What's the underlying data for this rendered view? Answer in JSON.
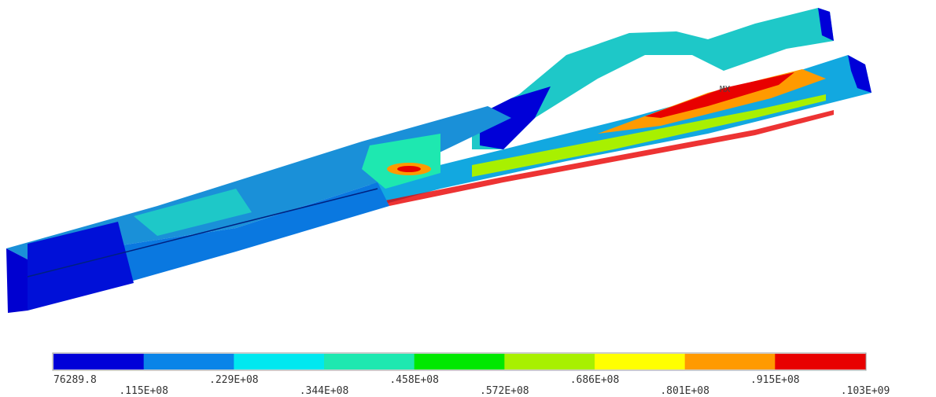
{
  "annotation": "MX",
  "legend": {
    "colors": [
      "#0000d8",
      "#0a84e8",
      "#00e8f0",
      "#1ee8b0",
      "#00e800",
      "#a8f000",
      "#ffff00",
      "#ff9a00",
      "#e80000"
    ],
    "labels": [
      "76289.8",
      ".115E+08",
      ".229E+08",
      ".344E+08",
      ".458E+08",
      ".572E+08",
      ".686E+08",
      ".801E+08",
      ".915E+08",
      ".103E+09"
    ]
  }
}
